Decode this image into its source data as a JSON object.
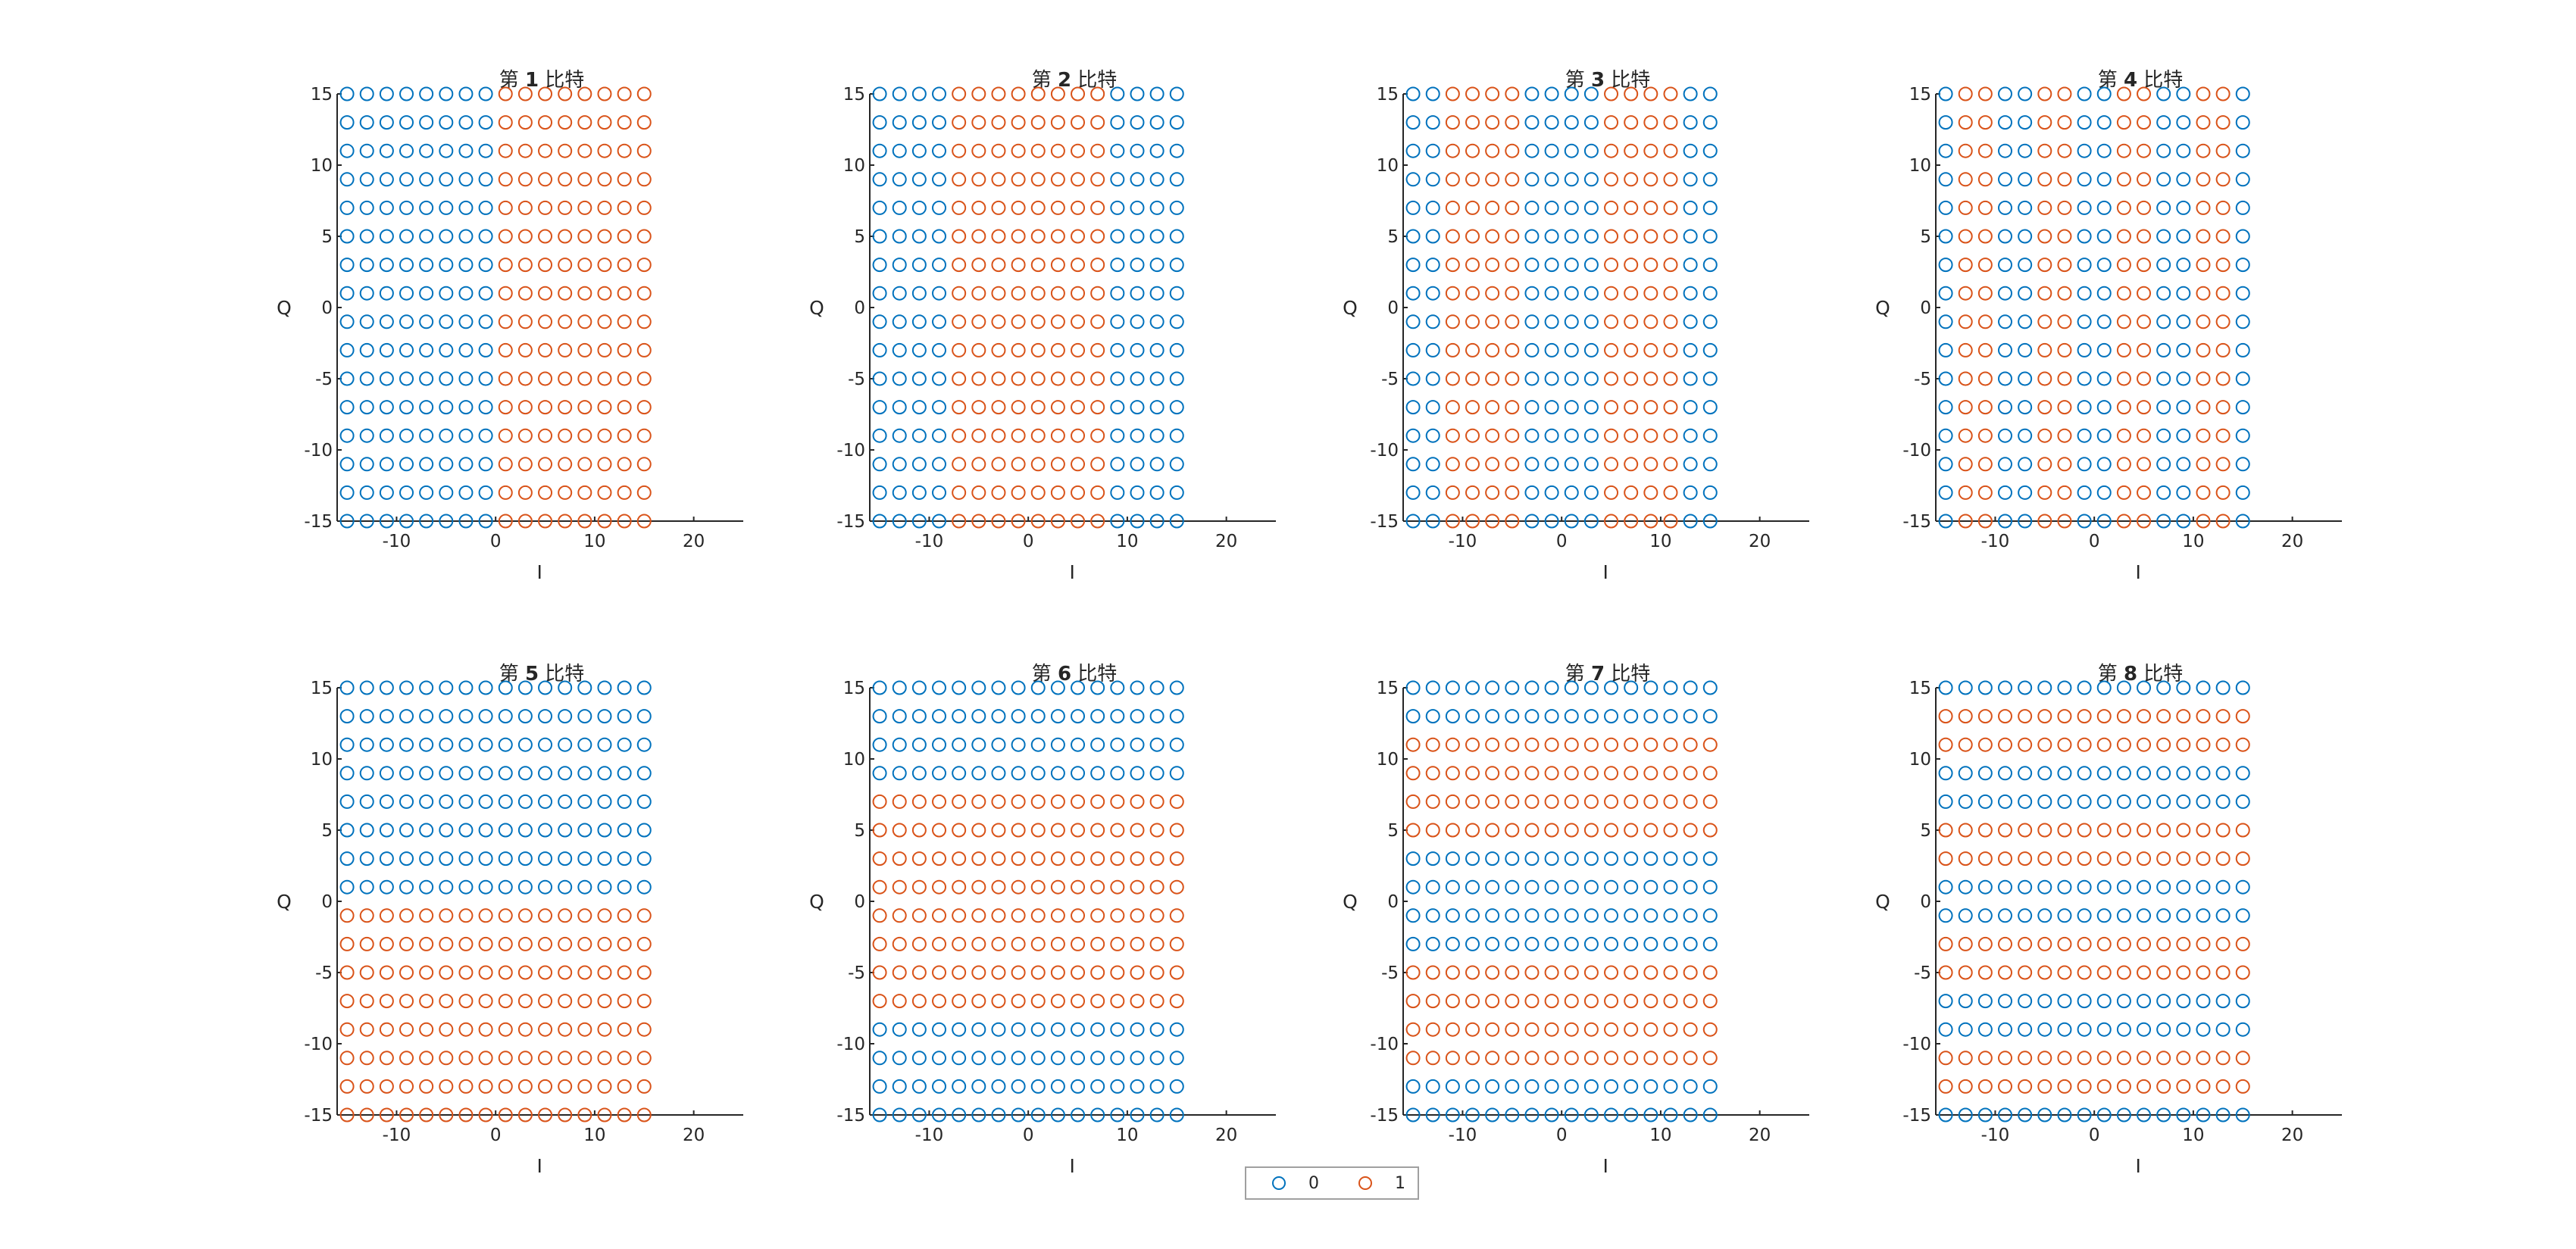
{
  "colors": {
    "zero": "#0072BD",
    "one": "#D95319",
    "axis": "#262626"
  },
  "legend": {
    "items": [
      {
        "label": "0",
        "color": "#0072BD"
      },
      {
        "label": "1",
        "color": "#D95319"
      }
    ]
  },
  "chart_data": [
    {
      "type": "scatter",
      "title": "第 1 比特",
      "title_num": "1",
      "title_suffix": "比特",
      "xlabel": "I",
      "ylabel": "Q",
      "xlim": [
        -16,
        25
      ],
      "ylim": [
        -15,
        15
      ],
      "xticks": [
        -10,
        0,
        10,
        20
      ],
      "yticks": [
        -15,
        -10,
        -5,
        0,
        5,
        10,
        15
      ],
      "x": [
        -15,
        -13,
        -11,
        -9,
        -7,
        -5,
        -3,
        -1,
        1,
        3,
        5,
        7,
        9,
        11,
        13,
        15
      ],
      "y": [
        15,
        13,
        11,
        9,
        7,
        5,
        3,
        1,
        -1,
        -3,
        -5,
        -7,
        -9,
        -11,
        -13,
        -15
      ],
      "series": [
        {
          "name": "0"
        },
        {
          "name": "1"
        }
      ],
      "bit_pattern_by_column": [
        0,
        0,
        0,
        0,
        0,
        0,
        0,
        0,
        1,
        1,
        1,
        1,
        1,
        1,
        1,
        1
      ]
    },
    {
      "type": "scatter",
      "title": "第 2 比特",
      "title_num": "2",
      "title_suffix": "比特",
      "xlabel": "I",
      "ylabel": "Q",
      "xlim": [
        -16,
        25
      ],
      "ylim": [
        -15,
        15
      ],
      "xticks": [
        -10,
        0,
        10,
        20
      ],
      "yticks": [
        -15,
        -10,
        -5,
        0,
        5,
        10,
        15
      ],
      "x": [
        -15,
        -13,
        -11,
        -9,
        -7,
        -5,
        -3,
        -1,
        1,
        3,
        5,
        7,
        9,
        11,
        13,
        15
      ],
      "y": [
        15,
        13,
        11,
        9,
        7,
        5,
        3,
        1,
        -1,
        -3,
        -5,
        -7,
        -9,
        -11,
        -13,
        -15
      ],
      "series": [
        {
          "name": "0"
        },
        {
          "name": "1"
        }
      ],
      "bit_pattern_by_column": [
        0,
        0,
        0,
        0,
        1,
        1,
        1,
        1,
        1,
        1,
        1,
        1,
        0,
        0,
        0,
        0
      ]
    },
    {
      "type": "scatter",
      "title": "第 3 比特",
      "title_num": "3",
      "title_suffix": "比特",
      "xlabel": "I",
      "ylabel": "Q",
      "xlim": [
        -16,
        25
      ],
      "ylim": [
        -15,
        15
      ],
      "xticks": [
        -10,
        0,
        10,
        20
      ],
      "yticks": [
        -15,
        -10,
        -5,
        0,
        5,
        10,
        15
      ],
      "x": [
        -15,
        -13,
        -11,
        -9,
        -7,
        -5,
        -3,
        -1,
        1,
        3,
        5,
        7,
        9,
        11,
        13,
        15
      ],
      "y": [
        15,
        13,
        11,
        9,
        7,
        5,
        3,
        1,
        -1,
        -3,
        -5,
        -7,
        -9,
        -11,
        -13,
        -15
      ],
      "series": [
        {
          "name": "0"
        },
        {
          "name": "1"
        }
      ],
      "bit_pattern_by_column": [
        0,
        0,
        1,
        1,
        1,
        1,
        0,
        0,
        0,
        0,
        1,
        1,
        1,
        1,
        0,
        0
      ]
    },
    {
      "type": "scatter",
      "title": "第 4 比特",
      "title_num": "4",
      "title_suffix": "比特",
      "xlabel": "I",
      "ylabel": "Q",
      "xlim": [
        -16,
        25
      ],
      "ylim": [
        -15,
        15
      ],
      "xticks": [
        -10,
        0,
        10,
        20
      ],
      "yticks": [
        -15,
        -10,
        -5,
        0,
        5,
        10,
        15
      ],
      "x": [
        -15,
        -13,
        -11,
        -9,
        -7,
        -5,
        -3,
        -1,
        1,
        3,
        5,
        7,
        9,
        11,
        13,
        15
      ],
      "y": [
        15,
        13,
        11,
        9,
        7,
        5,
        3,
        1,
        -1,
        -3,
        -5,
        -7,
        -9,
        -11,
        -13,
        -15
      ],
      "series": [
        {
          "name": "0"
        },
        {
          "name": "1"
        }
      ],
      "bit_pattern_by_column": [
        0,
        1,
        1,
        0,
        0,
        1,
        1,
        0,
        0,
        1,
        1,
        0,
        0,
        1,
        1,
        0
      ]
    },
    {
      "type": "scatter",
      "title": "第 5 比特",
      "title_num": "5",
      "title_suffix": "比特",
      "xlabel": "I",
      "ylabel": "Q",
      "xlim": [
        -16,
        25
      ],
      "ylim": [
        -15,
        15
      ],
      "xticks": [
        -10,
        0,
        10,
        20
      ],
      "yticks": [
        -15,
        -10,
        -5,
        0,
        5,
        10,
        15
      ],
      "x": [
        -15,
        -13,
        -11,
        -9,
        -7,
        -5,
        -3,
        -1,
        1,
        3,
        5,
        7,
        9,
        11,
        13,
        15
      ],
      "y": [
        15,
        13,
        11,
        9,
        7,
        5,
        3,
        1,
        -1,
        -3,
        -5,
        -7,
        -9,
        -11,
        -13,
        -15
      ],
      "series": [
        {
          "name": "0"
        },
        {
          "name": "1"
        }
      ],
      "bit_pattern_by_row": [
        0,
        0,
        0,
        0,
        0,
        0,
        0,
        0,
        1,
        1,
        1,
        1,
        1,
        1,
        1,
        1
      ]
    },
    {
      "type": "scatter",
      "title": "第 6 比特",
      "title_num": "6",
      "title_suffix": "比特",
      "xlabel": "I",
      "ylabel": "Q",
      "xlim": [
        -16,
        25
      ],
      "ylim": [
        -15,
        15
      ],
      "xticks": [
        -10,
        0,
        10,
        20
      ],
      "yticks": [
        -15,
        -10,
        -5,
        0,
        5,
        10,
        15
      ],
      "x": [
        -15,
        -13,
        -11,
        -9,
        -7,
        -5,
        -3,
        -1,
        1,
        3,
        5,
        7,
        9,
        11,
        13,
        15
      ],
      "y": [
        15,
        13,
        11,
        9,
        7,
        5,
        3,
        1,
        -1,
        -3,
        -5,
        -7,
        -9,
        -11,
        -13,
        -15
      ],
      "series": [
        {
          "name": "0"
        },
        {
          "name": "1"
        }
      ],
      "bit_pattern_by_row": [
        0,
        0,
        0,
        0,
        1,
        1,
        1,
        1,
        1,
        1,
        1,
        1,
        0,
        0,
        0,
        0
      ]
    },
    {
      "type": "scatter",
      "title": "第 7 比特",
      "title_num": "7",
      "title_suffix": "比特",
      "xlabel": "I",
      "ylabel": "Q",
      "xlim": [
        -16,
        25
      ],
      "ylim": [
        -15,
        15
      ],
      "xticks": [
        -10,
        0,
        10,
        20
      ],
      "yticks": [
        -15,
        -10,
        -5,
        0,
        5,
        10,
        15
      ],
      "x": [
        -15,
        -13,
        -11,
        -9,
        -7,
        -5,
        -3,
        -1,
        1,
        3,
        5,
        7,
        9,
        11,
        13,
        15
      ],
      "y": [
        15,
        13,
        11,
        9,
        7,
        5,
        3,
        1,
        -1,
        -3,
        -5,
        -7,
        -9,
        -11,
        -13,
        -15
      ],
      "series": [
        {
          "name": "0"
        },
        {
          "name": "1"
        }
      ],
      "bit_pattern_by_row": [
        0,
        0,
        1,
        1,
        1,
        1,
        0,
        0,
        0,
        0,
        1,
        1,
        1,
        1,
        0,
        0
      ]
    },
    {
      "type": "scatter",
      "title": "第 8 比特",
      "title_num": "8",
      "title_suffix": "比特",
      "xlabel": "I",
      "ylabel": "Q",
      "xlim": [
        -16,
        25
      ],
      "ylim": [
        -15,
        15
      ],
      "xticks": [
        -10,
        0,
        10,
        20
      ],
      "yticks": [
        -15,
        -10,
        -5,
        0,
        5,
        10,
        15
      ],
      "x": [
        -15,
        -13,
        -11,
        -9,
        -7,
        -5,
        -3,
        -1,
        1,
        3,
        5,
        7,
        9,
        11,
        13,
        15
      ],
      "y": [
        15,
        13,
        11,
        9,
        7,
        5,
        3,
        1,
        -1,
        -3,
        -5,
        -7,
        -9,
        -11,
        -13,
        -15
      ],
      "series": [
        {
          "name": "0"
        },
        {
          "name": "1"
        }
      ],
      "bit_pattern_by_row": [
        0,
        1,
        1,
        0,
        0,
        1,
        1,
        0,
        0,
        1,
        1,
        0,
        0,
        1,
        1,
        0
      ]
    }
  ]
}
